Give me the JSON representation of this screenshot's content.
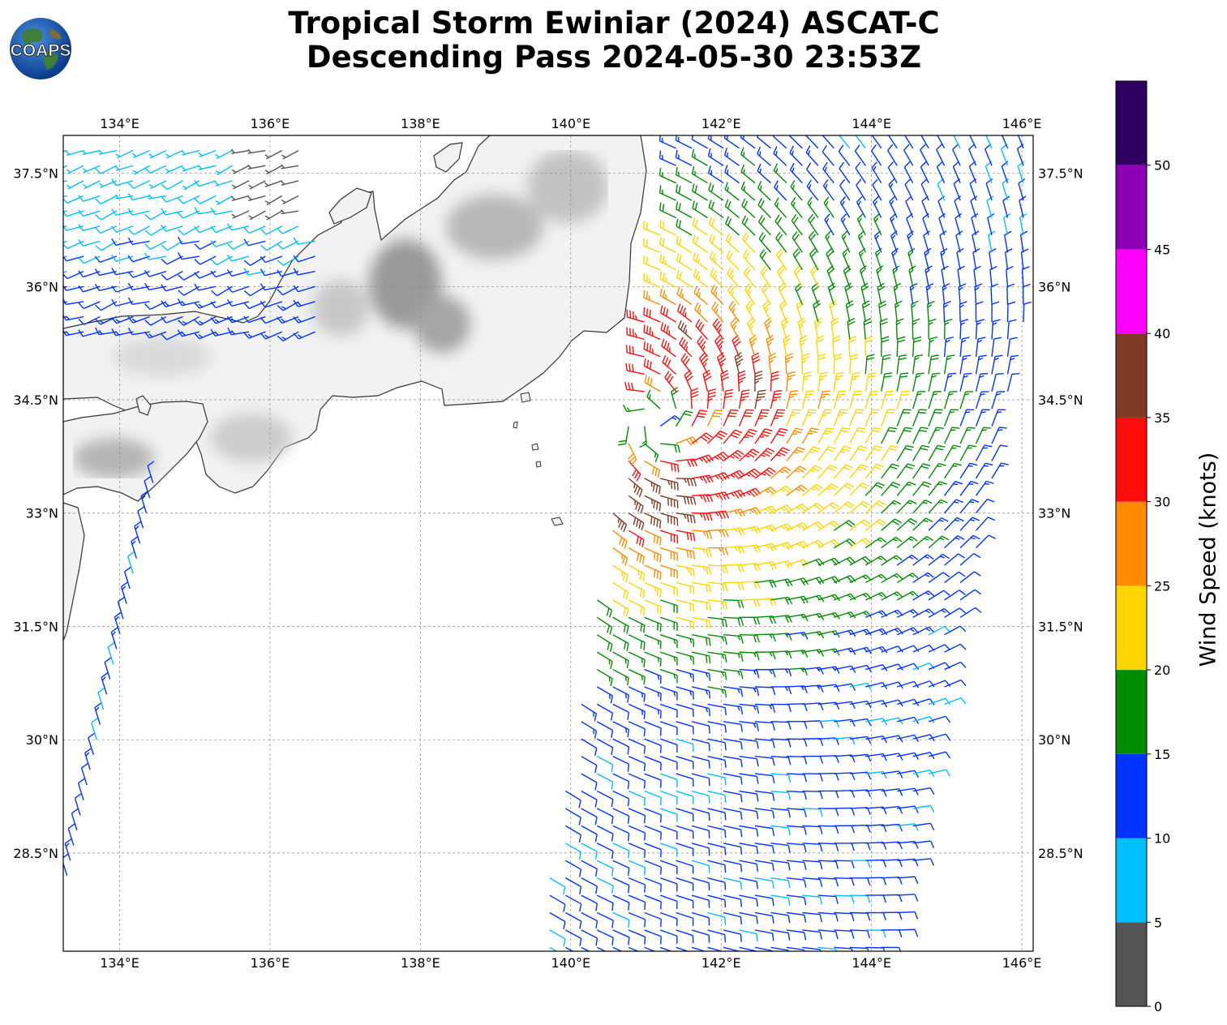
{
  "title": {
    "line1": "Tropical Storm Ewiniar (2024) ASCAT-C",
    "line2": "Descending Pass 2024-05-30 23:53Z"
  },
  "logo": {
    "text": "COAPS",
    "icon": "globe-logo-icon"
  },
  "map": {
    "lon_range": [
      133.25,
      146.15
    ],
    "lat_range": [
      27.2,
      38.0
    ],
    "lon_ticks": [
      "134°E",
      "136°E",
      "138°E",
      "140°E",
      "142°E",
      "144°E",
      "146°E"
    ],
    "lon_tick_values": [
      134,
      136,
      138,
      140,
      142,
      144,
      146
    ],
    "lat_ticks": [
      "37.5°N",
      "36°N",
      "34.5°N",
      "33°N",
      "31.5°N",
      "30°N",
      "28.5°N"
    ],
    "lat_tick_values": [
      37.5,
      36,
      34.5,
      33,
      31.5,
      30,
      28.5
    ],
    "grid": true,
    "grid_style": "dashed",
    "land_color": "#f2f2f2",
    "coastline_color": "#333333"
  },
  "storm": {
    "center_lon": 141.1,
    "center_lat": 34.2
  },
  "colorbar": {
    "label": "Wind Speed (knots)",
    "bounds": [
      0,
      5,
      10,
      15,
      20,
      25,
      30,
      35,
      40,
      45,
      50,
      55
    ],
    "tick_labels": [
      "0",
      "5",
      "10",
      "15",
      "20",
      "25",
      "30",
      "35",
      "40",
      "45",
      "50"
    ],
    "colors": [
      "#555555",
      "#00bfff",
      "#0033ff",
      "#008c00",
      "#ffd500",
      "#ff8c00",
      "#ff0d0d",
      "#7f3a26",
      "#ff00ff",
      "#8b00b5",
      "#2e0060"
    ]
  }
}
